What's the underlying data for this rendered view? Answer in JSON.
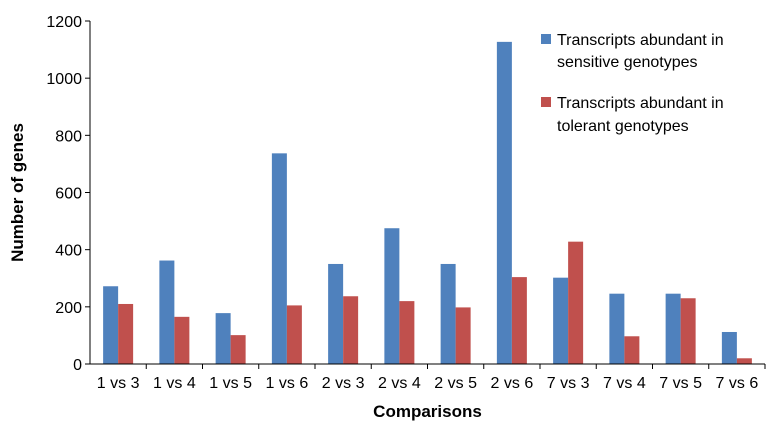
{
  "chart_data": {
    "type": "bar",
    "title": "",
    "xlabel": "Comparisons",
    "ylabel": "Number  of genes",
    "ylim": [
      0,
      1200
    ],
    "yticks": [
      0,
      200,
      400,
      600,
      800,
      1000,
      1200
    ],
    "categories": [
      "1 vs 3",
      "1 vs 4",
      "1 vs 5",
      "1 vs 6",
      "2 vs 3",
      "2 vs 4",
      "2 vs 5",
      "2 vs 6",
      "7 vs 3",
      "7 vs 4",
      "7 vs 5",
      "7 vs 6"
    ],
    "series": [
      {
        "name": "Transcripts abundant in sensitive genotypes",
        "name_lines": [
          "Transcripts abundant in",
          "sensitive genotypes"
        ],
        "color": "#4F81BD",
        "values": [
          272,
          362,
          178,
          737,
          350,
          475,
          350,
          1127,
          302,
          246,
          246,
          112
        ]
      },
      {
        "name": "Transcripts abundant in tolerant genotypes",
        "name_lines": [
          "Transcripts abundant in",
          "tolerant genotypes"
        ],
        "color": "#C0504D",
        "values": [
          210,
          165,
          101,
          205,
          237,
          220,
          198,
          304,
          428,
          97,
          230,
          20
        ]
      }
    ],
    "legend_position": "top-right",
    "grid": false
  }
}
